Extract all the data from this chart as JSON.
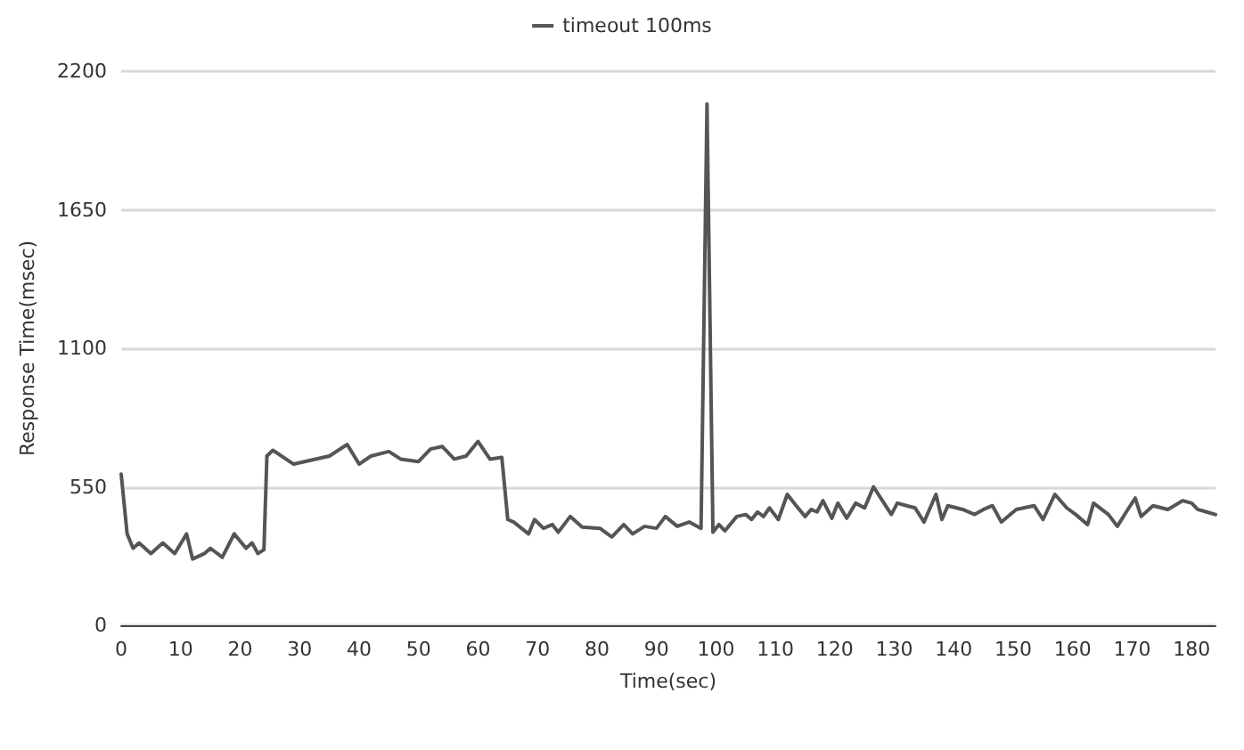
{
  "chart_data": {
    "type": "line",
    "xlabel": "Time(sec)",
    "ylabel": "Response Time(msec)",
    "xlim": [
      0,
      184
    ],
    "xticks": [
      0,
      10,
      20,
      30,
      40,
      50,
      60,
      70,
      80,
      90,
      100,
      110,
      120,
      130,
      140,
      150,
      160,
      170,
      180
    ],
    "ylim": [
      0,
      2200
    ],
    "yticks": [
      0,
      550,
      1100,
      1650,
      2200
    ],
    "grid": "y",
    "legend": "top",
    "marker": "none",
    "line_style": "solid",
    "series": [
      {
        "name": "timeout 100ms",
        "color": "#555555",
        "x": [
          0,
          1,
          2,
          3,
          5,
          7,
          9,
          11,
          12,
          14,
          15,
          17,
          19,
          21,
          22,
          23,
          24,
          24.5,
          25.5,
          29,
          35,
          38,
          40,
          42,
          45,
          47,
          50,
          52,
          54,
          56,
          58,
          60,
          62,
          64,
          65,
          66,
          68.5,
          69.5,
          71,
          72.5,
          73.5,
          75.5,
          77.5,
          80.5,
          82.5,
          84.5,
          86,
          88,
          90,
          91.5,
          93.5,
          95.5,
          97.5,
          98.5,
          99.5,
          100.5,
          101.5,
          103.5,
          105,
          106,
          107,
          108,
          109,
          110.5,
          112,
          113.5,
          115,
          116,
          117,
          118,
          119.5,
          120.5,
          122,
          123.5,
          125,
          126.5,
          128,
          129.5,
          130.5,
          133.5,
          135,
          137,
          138,
          139,
          141.5,
          143.5,
          145,
          146.5,
          148,
          150.5,
          153.5,
          155,
          157,
          159,
          160.5,
          162.5,
          163.5,
          166,
          167.5,
          169,
          170.5,
          171.5,
          173.5,
          176,
          178.5,
          180,
          181,
          182.5,
          184
        ],
        "values": [
          600,
          363,
          306,
          327,
          285,
          327,
          285,
          363,
          263,
          285,
          306,
          270,
          363,
          306,
          327,
          285,
          300,
          672,
          695,
          640,
          672,
          718,
          640,
          672,
          690,
          660,
          650,
          700,
          710,
          660,
          672,
          730,
          660,
          667,
          420,
          410,
          363,
          420,
          385,
          400,
          370,
          432,
          390,
          385,
          351,
          400,
          363,
          393,
          385,
          432,
          393,
          410,
          385,
          2070,
          370,
          400,
          375,
          432,
          440,
          420,
          450,
          432,
          466,
          420,
          520,
          475,
          432,
          460,
          450,
          495,
          425,
          485,
          425,
          485,
          466,
          550,
          495,
          440,
          485,
          466,
          410,
          520,
          420,
          475,
          460,
          440,
          460,
          475,
          410,
          460,
          475,
          420,
          520,
          466,
          440,
          400,
          485,
          440,
          393,
          450,
          505,
          432,
          475,
          460,
          495,
          485,
          460,
          450,
          440
        ]
      }
    ]
  }
}
